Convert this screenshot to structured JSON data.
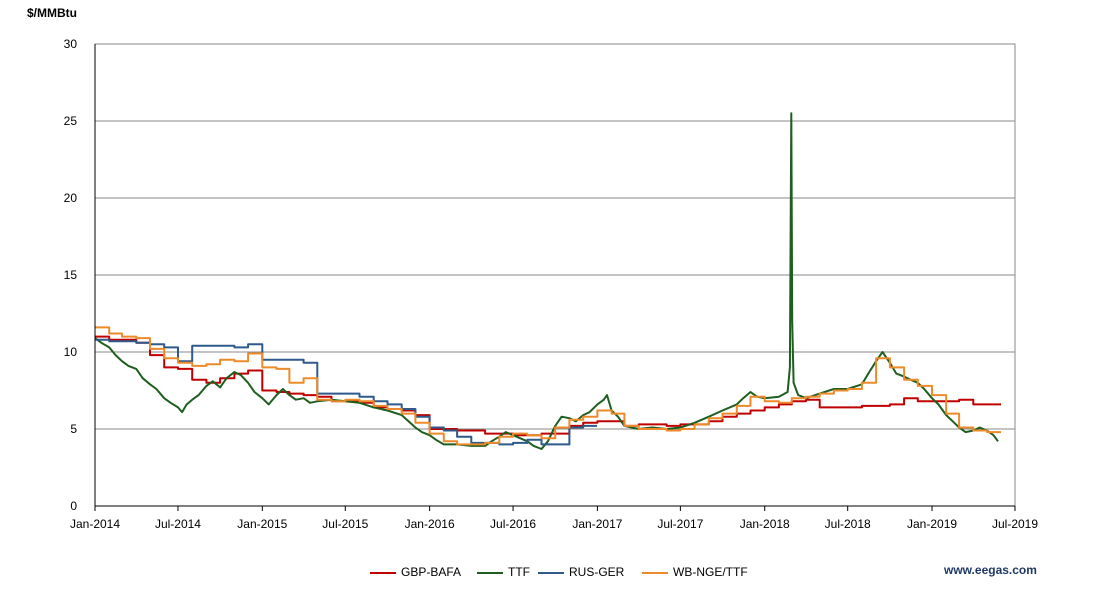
{
  "chart_data": {
    "type": "line",
    "ylabel": "$/MMBtu",
    "ylim": [
      0,
      30
    ],
    "yticks": [
      "0",
      "5",
      "10",
      "15",
      "20",
      "25",
      "30"
    ],
    "xlim": [
      "2014-01-01",
      "2019-07-01"
    ],
    "xticks": [
      "Jan-2014",
      "Jul-2014",
      "Jan-2015",
      "Jul-2015",
      "Jan-2016",
      "Jul-2016",
      "Jan-2017",
      "Jul-2017",
      "Jan-2018",
      "Jul-2018",
      "Jan-2019",
      "Jul-2019"
    ],
    "grid": "horizontal",
    "legend_position": "bottom",
    "series": [
      {
        "name": "GBP-BAFA",
        "color": "#c00000",
        "step": true,
        "points": [
          [
            "2014-01-01",
            11.0
          ],
          [
            "2014-02-01",
            10.8
          ],
          [
            "2014-04-01",
            10.6
          ],
          [
            "2014-05-01",
            9.8
          ],
          [
            "2014-06-01",
            9.0
          ],
          [
            "2014-07-01",
            8.9
          ],
          [
            "2014-08-01",
            8.2
          ],
          [
            "2014-09-01",
            8.0
          ],
          [
            "2014-10-01",
            8.3
          ],
          [
            "2014-11-01",
            8.6
          ],
          [
            "2014-12-01",
            8.8
          ],
          [
            "2015-01-01",
            7.5
          ],
          [
            "2015-02-01",
            7.4
          ],
          [
            "2015-03-01",
            7.3
          ],
          [
            "2015-04-01",
            7.2
          ],
          [
            "2015-05-01",
            7.1
          ],
          [
            "2015-06-01",
            6.8
          ],
          [
            "2015-07-01",
            6.8
          ],
          [
            "2015-08-01",
            6.7
          ],
          [
            "2015-09-01",
            6.4
          ],
          [
            "2015-10-01",
            6.3
          ],
          [
            "2015-11-01",
            6.2
          ],
          [
            "2015-12-01",
            5.9
          ],
          [
            "2016-01-01",
            5.0
          ],
          [
            "2016-03-01",
            4.9
          ],
          [
            "2016-05-01",
            4.7
          ],
          [
            "2016-07-01",
            4.6
          ],
          [
            "2016-09-01",
            4.7
          ],
          [
            "2016-11-01",
            5.2
          ],
          [
            "2016-12-01",
            5.4
          ],
          [
            "2017-01-01",
            5.5
          ],
          [
            "2017-03-01",
            5.2
          ],
          [
            "2017-04-01",
            5.3
          ],
          [
            "2017-06-01",
            5.2
          ],
          [
            "2017-07-01",
            5.3
          ],
          [
            "2017-09-01",
            5.5
          ],
          [
            "2017-10-01",
            5.8
          ],
          [
            "2017-11-01",
            6.0
          ],
          [
            "2017-12-01",
            6.2
          ],
          [
            "2018-01-01",
            6.4
          ],
          [
            "2018-02-01",
            6.6
          ],
          [
            "2018-03-01",
            6.8
          ],
          [
            "2018-04-01",
            6.9
          ],
          [
            "2018-05-01",
            6.4
          ],
          [
            "2018-08-01",
            6.5
          ],
          [
            "2018-10-01",
            6.6
          ],
          [
            "2018-11-01",
            7.0
          ],
          [
            "2018-12-01",
            6.8
          ],
          [
            "2019-03-01",
            6.9
          ],
          [
            "2019-04-01",
            6.6
          ],
          [
            "2019-05-01",
            6.6
          ]
        ]
      },
      {
        "name": "TTF",
        "color": "#1e5e1e",
        "step": false,
        "points": [
          [
            "2014-01-01",
            10.9
          ],
          [
            "2014-01-15",
            10.6
          ],
          [
            "2014-02-01",
            10.3
          ],
          [
            "2014-02-15",
            9.8
          ],
          [
            "2014-03-01",
            9.4
          ],
          [
            "2014-03-15",
            9.1
          ],
          [
            "2014-04-01",
            8.9
          ],
          [
            "2014-04-15",
            8.3
          ],
          [
            "2014-05-01",
            7.9
          ],
          [
            "2014-05-15",
            7.6
          ],
          [
            "2014-06-01",
            7.0
          ],
          [
            "2014-06-15",
            6.7
          ],
          [
            "2014-07-01",
            6.4
          ],
          [
            "2014-07-10",
            6.1
          ],
          [
            "2014-07-20",
            6.6
          ],
          [
            "2014-08-01",
            6.9
          ],
          [
            "2014-08-15",
            7.2
          ],
          [
            "2014-09-01",
            7.8
          ],
          [
            "2014-09-15",
            8.1
          ],
          [
            "2014-10-01",
            7.7
          ],
          [
            "2014-10-15",
            8.3
          ],
          [
            "2014-11-01",
            8.7
          ],
          [
            "2014-11-15",
            8.5
          ],
          [
            "2014-12-01",
            8.0
          ],
          [
            "2014-12-15",
            7.4
          ],
          [
            "2015-01-01",
            7.0
          ],
          [
            "2015-01-15",
            6.6
          ],
          [
            "2015-02-01",
            7.2
          ],
          [
            "2015-02-15",
            7.6
          ],
          [
            "2015-03-01",
            7.2
          ],
          [
            "2015-03-15",
            6.9
          ],
          [
            "2015-04-01",
            7.0
          ],
          [
            "2015-04-15",
            6.7
          ],
          [
            "2015-05-01",
            6.8
          ],
          [
            "2015-06-01",
            6.9
          ],
          [
            "2015-07-01",
            6.8
          ],
          [
            "2015-08-01",
            6.7
          ],
          [
            "2015-09-01",
            6.4
          ],
          [
            "2015-10-01",
            6.2
          ],
          [
            "2015-11-01",
            5.9
          ],
          [
            "2015-12-01",
            5.1
          ],
          [
            "2015-12-15",
            4.8
          ],
          [
            "2016-01-01",
            4.6
          ],
          [
            "2016-01-15",
            4.3
          ],
          [
            "2016-02-01",
            4.0
          ],
          [
            "2016-03-01",
            4.0
          ],
          [
            "2016-04-01",
            3.9
          ],
          [
            "2016-05-01",
            3.9
          ],
          [
            "2016-05-15",
            4.2
          ],
          [
            "2016-06-01",
            4.5
          ],
          [
            "2016-06-15",
            4.8
          ],
          [
            "2016-07-01",
            4.6
          ],
          [
            "2016-08-01",
            4.2
          ],
          [
            "2016-08-15",
            3.9
          ],
          [
            "2016-09-01",
            3.7
          ],
          [
            "2016-09-15",
            4.2
          ],
          [
            "2016-10-01",
            5.2
          ],
          [
            "2016-10-15",
            5.8
          ],
          [
            "2016-11-01",
            5.7
          ],
          [
            "2016-11-15",
            5.5
          ],
          [
            "2016-12-01",
            5.9
          ],
          [
            "2016-12-15",
            6.1
          ],
          [
            "2017-01-01",
            6.6
          ],
          [
            "2017-01-15",
            6.9
          ],
          [
            "2017-01-22",
            7.2
          ],
          [
            "2017-02-01",
            6.2
          ],
          [
            "2017-02-15",
            5.8
          ],
          [
            "2017-03-01",
            5.2
          ],
          [
            "2017-04-01",
            5.0
          ],
          [
            "2017-05-01",
            5.1
          ],
          [
            "2017-06-01",
            5.0
          ],
          [
            "2017-07-01",
            5.1
          ],
          [
            "2017-08-01",
            5.4
          ],
          [
            "2017-09-01",
            5.8
          ],
          [
            "2017-10-01",
            6.2
          ],
          [
            "2017-11-01",
            6.6
          ],
          [
            "2017-11-15",
            7.0
          ],
          [
            "2017-12-01",
            7.4
          ],
          [
            "2017-12-15",
            7.1
          ],
          [
            "2018-01-01",
            7.0
          ],
          [
            "2018-02-01",
            7.1
          ],
          [
            "2018-02-20",
            7.4
          ],
          [
            "2018-02-25",
            9.0
          ],
          [
            "2018-02-28",
            25.5
          ],
          [
            "2018-03-02",
            12.0
          ],
          [
            "2018-03-05",
            8.0
          ],
          [
            "2018-03-15",
            7.2
          ],
          [
            "2018-04-01",
            7.0
          ],
          [
            "2018-05-01",
            7.3
          ],
          [
            "2018-06-01",
            7.6
          ],
          [
            "2018-07-01",
            7.6
          ],
          [
            "2018-08-01",
            7.9
          ],
          [
            "2018-08-15",
            8.6
          ],
          [
            "2018-09-01",
            9.4
          ],
          [
            "2018-09-15",
            10.0
          ],
          [
            "2018-10-01",
            9.3
          ],
          [
            "2018-10-15",
            8.6
          ],
          [
            "2018-11-01",
            8.4
          ],
          [
            "2018-11-15",
            8.2
          ],
          [
            "2018-12-01",
            8.0
          ],
          [
            "2018-12-15",
            7.6
          ],
          [
            "2019-01-01",
            7.0
          ],
          [
            "2019-01-15",
            6.6
          ],
          [
            "2019-02-01",
            5.9
          ],
          [
            "2019-02-15",
            5.5
          ],
          [
            "2019-03-01",
            5.1
          ],
          [
            "2019-03-15",
            4.8
          ],
          [
            "2019-04-01",
            4.9
          ],
          [
            "2019-04-15",
            5.1
          ],
          [
            "2019-05-01",
            4.9
          ],
          [
            "2019-05-15",
            4.6
          ],
          [
            "2019-05-25",
            4.2
          ]
        ]
      },
      {
        "name": "RUS-GER",
        "color": "#2e5a8c",
        "step": true,
        "points": [
          [
            "2014-01-01",
            10.8
          ],
          [
            "2014-02-01",
            10.7
          ],
          [
            "2014-04-01",
            10.6
          ],
          [
            "2014-05-01",
            10.5
          ],
          [
            "2014-06-01",
            10.3
          ],
          [
            "2014-07-01",
            9.4
          ],
          [
            "2014-08-01",
            10.4
          ],
          [
            "2014-11-01",
            10.3
          ],
          [
            "2014-12-01",
            10.5
          ],
          [
            "2015-01-01",
            9.5
          ],
          [
            "2015-04-01",
            9.3
          ],
          [
            "2015-05-01",
            7.3
          ],
          [
            "2015-07-01",
            7.3
          ],
          [
            "2015-08-01",
            7.1
          ],
          [
            "2015-09-01",
            6.8
          ],
          [
            "2015-10-01",
            6.6
          ],
          [
            "2015-11-01",
            6.3
          ],
          [
            "2015-12-01",
            5.8
          ],
          [
            "2016-01-01",
            5.1
          ],
          [
            "2016-02-01",
            4.9
          ],
          [
            "2016-03-01",
            4.5
          ],
          [
            "2016-04-01",
            4.1
          ],
          [
            "2016-06-01",
            4.0
          ],
          [
            "2016-07-01",
            4.1
          ],
          [
            "2016-08-01",
            4.3
          ],
          [
            "2016-09-01",
            4.0
          ],
          [
            "2016-10-01",
            4.0
          ],
          [
            "2016-11-01",
            5.1
          ],
          [
            "2016-12-01",
            5.2
          ]
        ]
      },
      {
        "name": "WB-NGE/TTF",
        "color": "#ed8a2a",
        "step": true,
        "points": [
          [
            "2014-01-01",
            11.6
          ],
          [
            "2014-02-01",
            11.2
          ],
          [
            "2014-03-01",
            11.0
          ],
          [
            "2014-04-01",
            10.9
          ],
          [
            "2014-05-01",
            10.2
          ],
          [
            "2014-06-01",
            9.6
          ],
          [
            "2014-07-01",
            9.3
          ],
          [
            "2014-08-01",
            9.1
          ],
          [
            "2014-09-01",
            9.2
          ],
          [
            "2014-10-01",
            9.5
          ],
          [
            "2014-11-01",
            9.4
          ],
          [
            "2014-12-01",
            9.9
          ],
          [
            "2015-01-01",
            9.0
          ],
          [
            "2015-02-01",
            8.9
          ],
          [
            "2015-03-01",
            8.0
          ],
          [
            "2015-04-01",
            8.3
          ],
          [
            "2015-05-01",
            6.9
          ],
          [
            "2015-06-01",
            6.8
          ],
          [
            "2015-07-01",
            6.9
          ],
          [
            "2015-08-01",
            6.8
          ],
          [
            "2015-09-01",
            6.5
          ],
          [
            "2015-10-01",
            6.3
          ],
          [
            "2015-11-01",
            6.0
          ],
          [
            "2015-12-01",
            5.4
          ],
          [
            "2016-01-01",
            4.7
          ],
          [
            "2016-02-01",
            4.2
          ],
          [
            "2016-03-01",
            4.0
          ],
          [
            "2016-05-01",
            4.1
          ],
          [
            "2016-06-01",
            4.5
          ],
          [
            "2016-07-01",
            4.7
          ],
          [
            "2016-08-01",
            4.6
          ],
          [
            "2016-09-01",
            4.4
          ],
          [
            "2016-10-01",
            5.1
          ],
          [
            "2016-11-01",
            5.6
          ],
          [
            "2016-12-01",
            5.8
          ],
          [
            "2017-01-01",
            6.2
          ],
          [
            "2017-02-01",
            6.0
          ],
          [
            "2017-03-01",
            5.2
          ],
          [
            "2017-04-01",
            5.0
          ],
          [
            "2017-05-01",
            5.0
          ],
          [
            "2017-06-01",
            4.9
          ],
          [
            "2017-07-01",
            5.0
          ],
          [
            "2017-08-01",
            5.3
          ],
          [
            "2017-09-01",
            5.7
          ],
          [
            "2017-10-01",
            6.0
          ],
          [
            "2017-11-01",
            6.5
          ],
          [
            "2017-12-01",
            7.1
          ],
          [
            "2018-01-01",
            6.8
          ],
          [
            "2018-02-01",
            6.7
          ],
          [
            "2018-03-01",
            7.0
          ],
          [
            "2018-04-01",
            7.1
          ],
          [
            "2018-05-01",
            7.3
          ],
          [
            "2018-06-01",
            7.5
          ],
          [
            "2018-07-01",
            7.6
          ],
          [
            "2018-08-01",
            8.0
          ],
          [
            "2018-09-01",
            9.6
          ],
          [
            "2018-10-01",
            9.0
          ],
          [
            "2018-11-01",
            8.2
          ],
          [
            "2018-12-01",
            7.8
          ],
          [
            "2019-01-01",
            7.2
          ],
          [
            "2019-02-01",
            6.0
          ],
          [
            "2019-03-01",
            5.1
          ],
          [
            "2019-04-01",
            4.9
          ],
          [
            "2019-05-01",
            4.8
          ]
        ]
      }
    ]
  },
  "source_text": "www.eegas.com"
}
